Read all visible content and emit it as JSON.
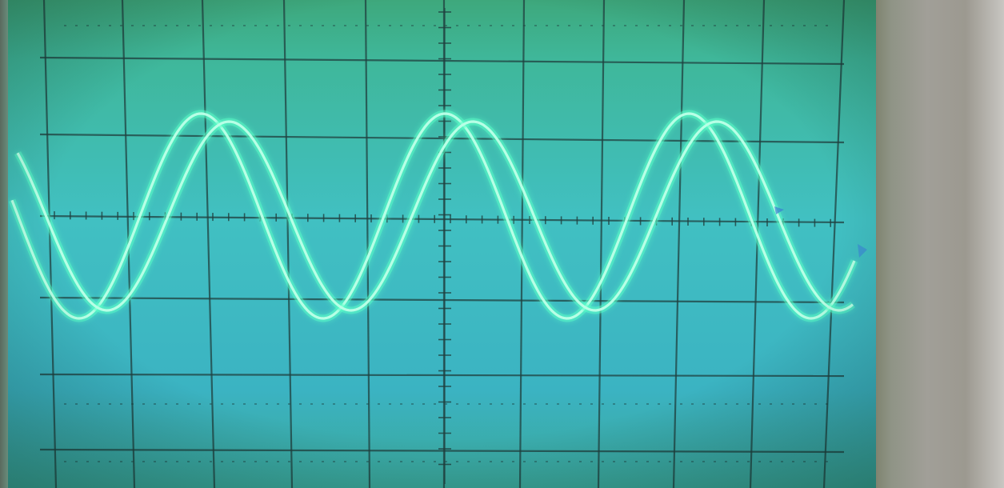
{
  "image": {
    "subject": "oscilloscope-screen",
    "colors": {
      "screen_top": "#3fb58a",
      "screen_mid": "#3fbdbd",
      "screen_bottom": "#3aaec0",
      "grid": "#20403f",
      "trace": "#b8ffe6",
      "trace_glow": "#5cffc8",
      "bezel": "#9c9990"
    },
    "traces": [
      {
        "name_icon": "sine-trace-1",
        "cycles_visible": 3
      },
      {
        "name_icon": "sine-trace-2",
        "cycles_visible": 3
      }
    ]
  }
}
